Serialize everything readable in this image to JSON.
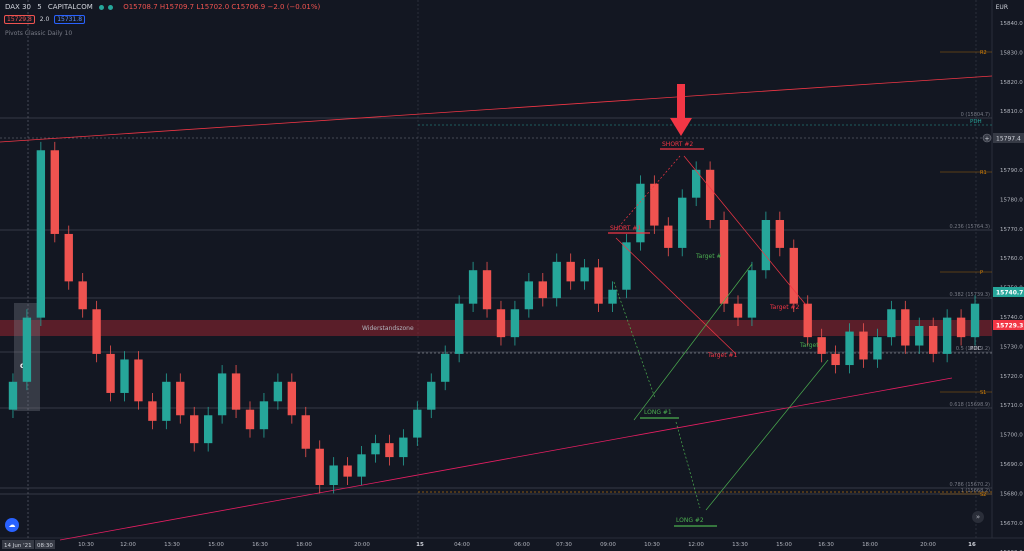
{
  "header": {
    "symbol": "DAX 30",
    "interval": "5",
    "exchange": "CAPITALCOM",
    "ohlc": "O15708.7 H15709.7 L15702.0 C15706.9 −2.0 (−0.01%)",
    "bid": "15729.8",
    "spread": "2.0",
    "ask": "15731.8",
    "indicator": "Pivots Classic Daily 10"
  },
  "price_axis": {
    "currency": "EUR",
    "ticks": [
      "15840.0",
      "15830.0",
      "15820.0",
      "15810.0",
      "15800.0",
      "15790.0",
      "15780.0",
      "15770.0",
      "15760.0",
      "15750.0",
      "15740.0",
      "15730.0",
      "15720.0",
      "15710.0",
      "15700.0",
      "15690.0",
      "15680.0",
      "15670.0",
      "15660.0"
    ],
    "current_price_label": "15740.7",
    "resistance_price_label": "15729.3",
    "crosshair_price_label": "15797.4"
  },
  "time_axis": {
    "ticks": [
      "10:30",
      "12:00",
      "13:30",
      "15:00",
      "16:30",
      "18:00",
      "20:00",
      "15",
      "04:00",
      "06:00",
      "07:30",
      "09:00",
      "10:30",
      "12:00",
      "13:30",
      "15:00",
      "16:30",
      "18:00",
      "20:00",
      "16"
    ],
    "crosshair_label": "14 Jun '21",
    "crosshair_time": "08:30"
  },
  "pivots": {
    "R2": "R2",
    "R1": "R1",
    "P": "P",
    "S1": "S1",
    "S2": "S2",
    "PDH": "PDH",
    "PDC": "PDC",
    "fib_0": "0 (15804.7)",
    "fib_236": "0.236 (15764.3)",
    "fib_382": "0.382 (15739.3)",
    "fib_5": "0.5 (15719.2)",
    "fib_618": "0.618 (15698.9)",
    "fib_786": "0.786 (15670.2)",
    "fib_1": "1 (15668.2)"
  },
  "annotations": {
    "opening_range": "OR",
    "zone": "Widerstandszone",
    "short1": "SHORT #1",
    "short2": "SHORT #2",
    "long1": "LONG #1",
    "long2": "LONG #2",
    "target_hash": "Target #",
    "target2": "Target #2",
    "target_green": "Target",
    "target1": "Target #1"
  },
  "chart_data": {
    "type": "candlestick",
    "title": "",
    "ylim": [
      15656,
      15846
    ],
    "ranges": [
      [
        15702,
        15712
      ],
      [
        15712,
        15735
      ],
      [
        15735,
        15795
      ],
      [
        15795,
        15765
      ],
      [
        15765,
        15748
      ],
      [
        15748,
        15738
      ],
      [
        15738,
        15722
      ],
      [
        15722,
        15708
      ],
      [
        15708,
        15720
      ],
      [
        15720,
        15705
      ],
      [
        15705,
        15698
      ],
      [
        15698,
        15712
      ],
      [
        15712,
        15700
      ],
      [
        15700,
        15690
      ],
      [
        15690,
        15700
      ],
      [
        15700,
        15715
      ],
      [
        15715,
        15702
      ],
      [
        15702,
        15695
      ],
      [
        15695,
        15705
      ],
      [
        15705,
        15712
      ],
      [
        15712,
        15700
      ],
      [
        15700,
        15688
      ],
      [
        15688,
        15675
      ],
      [
        15675,
        15682
      ],
      [
        15682,
        15678
      ],
      [
        15678,
        15686
      ],
      [
        15686,
        15690
      ],
      [
        15690,
        15685
      ],
      [
        15685,
        15692
      ],
      [
        15692,
        15702
      ],
      [
        15702,
        15712
      ],
      [
        15712,
        15722
      ],
      [
        15722,
        15740
      ],
      [
        15740,
        15752
      ],
      [
        15752,
        15738
      ],
      [
        15738,
        15728
      ],
      [
        15728,
        15738
      ],
      [
        15738,
        15748
      ],
      [
        15748,
        15742
      ],
      [
        15742,
        15755
      ],
      [
        15755,
        15748
      ],
      [
        15748,
        15753
      ],
      [
        15753,
        15740
      ],
      [
        15740,
        15745
      ],
      [
        15745,
        15762
      ],
      [
        15762,
        15783
      ],
      [
        15783,
        15768
      ],
      [
        15768,
        15760
      ],
      [
        15760,
        15778
      ],
      [
        15778,
        15788
      ],
      [
        15788,
        15770
      ],
      [
        15770,
        15740
      ],
      [
        15740,
        15735
      ],
      [
        15735,
        15752
      ],
      [
        15752,
        15770
      ],
      [
        15770,
        15760
      ],
      [
        15760,
        15740
      ],
      [
        15740,
        15728
      ],
      [
        15728,
        15722
      ],
      [
        15722,
        15718
      ],
      [
        15718,
        15730
      ],
      [
        15730,
        15720
      ],
      [
        15720,
        15728
      ],
      [
        15728,
        15738
      ],
      [
        15738,
        15725
      ],
      [
        15725,
        15732
      ],
      [
        15732,
        15722
      ],
      [
        15722,
        15735
      ],
      [
        15735,
        15728
      ],
      [
        15728,
        15740
      ]
    ]
  },
  "colors": {
    "up": "#26a69a",
    "down": "#ef5350",
    "short": "#f23645",
    "long": "#4caf50",
    "arrow": "#f23645"
  }
}
